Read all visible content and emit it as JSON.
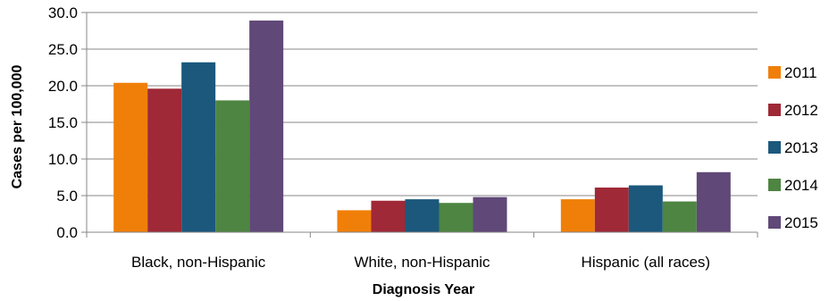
{
  "chart_data": {
    "type": "bar",
    "title": "",
    "xlabel": "Diagnosis Year",
    "ylabel": "Cases per 100,000",
    "ylim": [
      0,
      30
    ],
    "yticks": [
      "0.0",
      "5.0",
      "10.0",
      "15.0",
      "20.0",
      "25.0",
      "30.0"
    ],
    "grid": true,
    "legend_position": "right",
    "categories": [
      "Black, non-Hispanic",
      "White, non-Hispanic",
      "Hispanic (all races)"
    ],
    "series": [
      {
        "name": "2011",
        "color": "#f07f09",
        "values": [
          20.4,
          3.0,
          4.5
        ]
      },
      {
        "name": "2012",
        "color": "#9f2936",
        "values": [
          19.6,
          4.3,
          6.1
        ]
      },
      {
        "name": "2013",
        "color": "#1b587c",
        "values": [
          23.2,
          4.5,
          6.4
        ]
      },
      {
        "name": "2014",
        "color": "#4e8542",
        "values": [
          18.0,
          4.0,
          4.2
        ]
      },
      {
        "name": "2015",
        "color": "#604878",
        "values": [
          28.9,
          4.8,
          8.2
        ]
      }
    ]
  }
}
